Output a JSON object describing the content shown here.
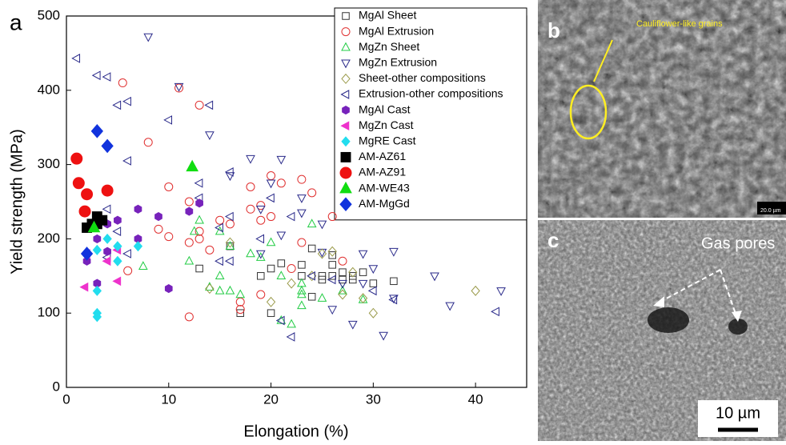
{
  "chart_data": {
    "type": "scatter",
    "xlabel": "Elongation (%)",
    "ylabel": "Yield strength (MPa)",
    "panel_label": "a",
    "xlim": [
      0,
      45
    ],
    "xticks": [
      0,
      10,
      20,
      30,
      40
    ],
    "ylim": [
      0,
      500
    ],
    "yticks": [
      0,
      100,
      200,
      300,
      400,
      500
    ],
    "legend": "upper right",
    "series": [
      {
        "name": "MgAl Sheet",
        "color": "#333333",
        "marker": "square",
        "filled": false,
        "x": [
          13,
          17,
          19,
          20,
          20,
          21,
          23,
          23,
          24,
          24,
          25,
          25,
          26,
          26,
          26,
          27,
          27,
          28,
          28,
          29,
          30,
          32,
          16
        ],
        "values": [
          160,
          100,
          150,
          100,
          160,
          167,
          165,
          150,
          187,
          122,
          150,
          145,
          178,
          165,
          150,
          145,
          155,
          145,
          150,
          155,
          140,
          143,
          190
        ]
      },
      {
        "name": "MgAl Extrusion",
        "color": "#e03030",
        "marker": "circle",
        "filled": false,
        "x": [
          5.5,
          11,
          8,
          10,
          13,
          9,
          10,
          12,
          12,
          13,
          13,
          14,
          6,
          12,
          17,
          17,
          18,
          18,
          19,
          20,
          21,
          20,
          23,
          24,
          23,
          19,
          22,
          26,
          27,
          19,
          15,
          16
        ],
        "values": [
          410,
          403,
          330,
          270,
          380,
          213,
          203,
          195,
          250,
          200,
          210,
          185,
          157,
          95,
          105,
          115,
          270,
          240,
          245,
          285,
          275,
          230,
          280,
          262,
          195,
          125,
          160,
          230,
          170,
          225,
          225,
          220
        ]
      },
      {
        "name": "MgZn Sheet",
        "color": "#22cc44",
        "marker": "triangle-up",
        "filled": false,
        "x": [
          7.5,
          12,
          12.5,
          13,
          14,
          15,
          15,
          16,
          17,
          18,
          19,
          20,
          21,
          22,
          23,
          23,
          23,
          24,
          25,
          27,
          29,
          16,
          15,
          23,
          21
        ],
        "values": [
          163,
          170,
          210,
          225,
          135,
          150,
          130,
          130,
          125,
          180,
          175,
          195,
          90,
          85,
          140,
          125,
          110,
          220,
          120,
          130,
          118,
          190,
          210,
          130,
          150
        ]
      },
      {
        "name": "MgZn Extrusion",
        "color": "#2a2a8a",
        "marker": "triangle-down",
        "filled": false,
        "x": [
          8,
          11,
          14,
          16,
          18,
          19,
          20,
          21,
          21,
          23,
          25,
          25,
          26,
          27,
          28,
          29,
          29,
          30,
          31,
          32,
          32,
          36,
          37.5,
          42.5,
          19,
          23
        ],
        "values": [
          472,
          405,
          340,
          285,
          308,
          240,
          275,
          307,
          205,
          255,
          220,
          182,
          105,
          140,
          85,
          180,
          140,
          160,
          70,
          183,
          120,
          150,
          110,
          130,
          180,
          235
        ]
      },
      {
        "name": "Sheet-other compositions",
        "color": "#9a9a4a",
        "marker": "diamond",
        "filled": false,
        "x": [
          14,
          16,
          20,
          22,
          24,
          25,
          26,
          27,
          28,
          29,
          30,
          40
        ],
        "values": [
          133,
          195,
          115,
          140,
          150,
          180,
          183,
          125,
          155,
          120,
          100,
          130
        ]
      },
      {
        "name": "Extrusion-other compositions",
        "color": "#2a2a8a",
        "marker": "triangle-left",
        "filled": false,
        "x": [
          1,
          3,
          4,
          5,
          6,
          6,
          10,
          14,
          13,
          13,
          15,
          15,
          16,
          16,
          16,
          19,
          20,
          21,
          22,
          22,
          24,
          26,
          30,
          32,
          42,
          5,
          6,
          4,
          4
        ],
        "values": [
          443,
          420,
          418,
          380,
          385,
          305,
          360,
          380,
          275,
          255,
          170,
          215,
          290,
          230,
          170,
          200,
          255,
          90,
          230,
          68,
          150,
          145,
          130,
          118,
          102,
          210,
          180,
          240,
          175
        ]
      },
      {
        "name": "MgAl Cast",
        "color": "#7722bb",
        "marker": "hexagon",
        "filled": true,
        "x": [
          2,
          3,
          3,
          4,
          4,
          5,
          7,
          7,
          9,
          10,
          12,
          13
        ],
        "values": [
          170,
          200,
          140,
          183,
          220,
          225,
          240,
          200,
          230,
          133,
          237,
          248
        ]
      },
      {
        "name": "MgZn Cast",
        "color": "#ee33cc",
        "marker": "triangle-left",
        "filled": true,
        "x": [
          1.8,
          2,
          4,
          5,
          5
        ],
        "values": [
          135,
          180,
          170,
          143,
          185
        ]
      },
      {
        "name": "MgRE Cast",
        "color": "#22ddee",
        "marker": "diamond",
        "filled": true,
        "x": [
          3,
          3,
          3,
          4,
          5,
          5,
          7,
          3
        ],
        "values": [
          100,
          95,
          130,
          200,
          170,
          190,
          190,
          185
        ]
      },
      {
        "name": "AM-AZ61",
        "color": "#000000",
        "marker": "square",
        "filled": true,
        "x": [
          2,
          3,
          3,
          3.5,
          2.5
        ],
        "values": [
          215,
          230,
          220,
          225,
          220
        ]
      },
      {
        "name": "AM-AZ91",
        "color": "#ee1111",
        "marker": "circle",
        "filled": true,
        "x": [
          1,
          1.2,
          2,
          1.8,
          4
        ],
        "values": [
          308,
          275,
          260,
          237,
          265
        ]
      },
      {
        "name": "AM-WE43",
        "color": "#11dd11",
        "marker": "triangle-up",
        "filled": true,
        "x": [
          2.7,
          12.3
        ],
        "values": [
          215,
          297
        ]
      },
      {
        "name": "AM-MgGd",
        "color": "#1133dd",
        "marker": "diamond",
        "filled": true,
        "x": [
          2,
          3,
          4
        ],
        "values": [
          180,
          345,
          325
        ]
      }
    ]
  },
  "panels": {
    "b": {
      "label": "b",
      "annotation": "Cauliflower-like grains",
      "scale": "20.0 µm"
    },
    "c": {
      "label": "c",
      "annotation": "Gas pores",
      "scale": "10 µm"
    }
  }
}
